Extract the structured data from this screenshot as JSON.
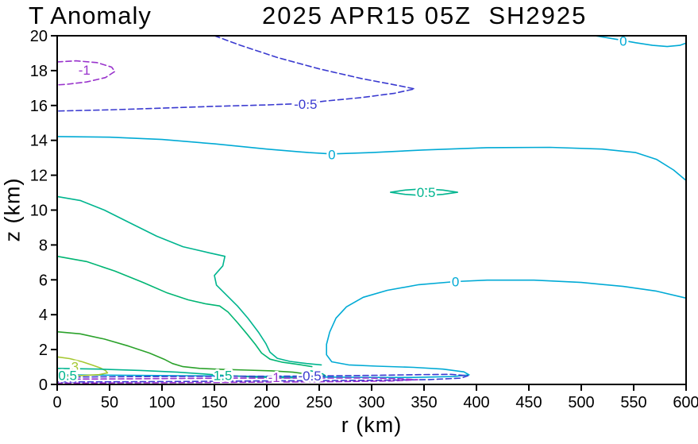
{
  "figure": {
    "title_left": "T Anomaly",
    "title_right": "2025 APR15 05Z  SH2925",
    "xlabel": "r (km)",
    "ylabel": "z (km)"
  },
  "chart_data": {
    "type": "contour",
    "title": "T Anomaly",
    "subtitle": "2025 APR15 05Z SH2925",
    "xlabel": "r (km)",
    "ylabel": "z (km)",
    "xlim": [
      0,
      600
    ],
    "ylim": [
      0,
      20
    ],
    "x_ticks": [
      0,
      50,
      100,
      150,
      200,
      250,
      300,
      350,
      400,
      450,
      500,
      550,
      600
    ],
    "y_ticks": [
      0,
      2,
      4,
      6,
      8,
      10,
      12,
      14,
      16,
      18,
      20
    ],
    "grid": false,
    "legend": "none",
    "level_colors": {
      "-1": "#9933cc",
      "-0.5": "#3a3ad0",
      "0": "#00aad5",
      "0.5": "#00b58f",
      "1": "#00b573",
      "1.5": "#00b58f",
      "2": "#2ba22b",
      "3": "#a6c832"
    },
    "contours": [
      {
        "id": "neg1-upper",
        "level": -1,
        "style": "dashed",
        "color": "#9933cc",
        "points": [
          [
            0,
            18.5
          ],
          [
            18,
            18.56
          ],
          [
            38,
            18.46
          ],
          [
            52,
            18.2
          ],
          [
            55,
            17.95
          ],
          [
            46,
            17.6
          ],
          [
            28,
            17.35
          ],
          [
            10,
            17.22
          ],
          [
            0,
            17.18
          ]
        ],
        "labels": [
          {
            "text": "-1",
            "r": 26,
            "z": 18.05
          }
        ]
      },
      {
        "id": "neg05-upper",
        "level": -0.5,
        "style": "dashed",
        "color": "#3a3ad0",
        "points": [
          [
            150,
            20
          ],
          [
            175,
            19.45
          ],
          [
            210,
            18.75
          ],
          [
            250,
            18.1
          ],
          [
            290,
            17.55
          ],
          [
            325,
            17.15
          ],
          [
            341,
            16.95
          ],
          [
            322,
            16.7
          ],
          [
            290,
            16.45
          ],
          [
            255,
            16.25
          ],
          [
            237,
            16.12
          ],
          [
            200,
            16.03
          ],
          [
            150,
            15.95
          ],
          [
            100,
            15.85
          ],
          [
            50,
            15.75
          ],
          [
            0,
            15.68
          ]
        ],
        "labels": [
          {
            "text": "-0.5",
            "r": 237,
            "z": 16.08
          }
        ]
      },
      {
        "id": "zero-top-right",
        "level": 0,
        "style": "solid",
        "color": "#00aad5",
        "points": [
          [
            513,
            20
          ],
          [
            535,
            19.78
          ],
          [
            552,
            19.6
          ],
          [
            568,
            19.45
          ],
          [
            582,
            19.38
          ],
          [
            594,
            19.45
          ],
          [
            600,
            19.58
          ]
        ],
        "labels": [
          {
            "text": "0",
            "r": 540,
            "z": 19.7
          }
        ]
      },
      {
        "id": "zero-mid",
        "level": 0,
        "style": "solid",
        "color": "#00aad5",
        "points": [
          [
            0,
            14.22
          ],
          [
            50,
            14.18
          ],
          [
            100,
            14.05
          ],
          [
            150,
            13.8
          ],
          [
            200,
            13.5
          ],
          [
            240,
            13.3
          ],
          [
            262,
            13.22
          ],
          [
            300,
            13.3
          ],
          [
            350,
            13.45
          ],
          [
            410,
            13.58
          ],
          [
            470,
            13.6
          ],
          [
            520,
            13.5
          ],
          [
            552,
            13.3
          ],
          [
            572,
            12.9
          ],
          [
            588,
            12.3
          ],
          [
            600,
            11.7
          ]
        ],
        "labels": [
          {
            "text": "0",
            "r": 262,
            "z": 13.2
          }
        ]
      },
      {
        "id": "pos05-mid",
        "level": 0.5,
        "style": "solid",
        "color": "#00b58f",
        "points": [
          [
            318,
            11.02
          ],
          [
            332,
            11.15
          ],
          [
            350,
            11.22
          ],
          [
            368,
            11.15
          ],
          [
            382,
            11.02
          ],
          [
            368,
            10.9
          ],
          [
            350,
            10.83
          ],
          [
            332,
            10.9
          ],
          [
            318,
            11.02
          ]
        ],
        "labels": [
          {
            "text": "0.5",
            "r": 352,
            "z": 11.02
          }
        ]
      },
      {
        "id": "zero-lower",
        "level": 0,
        "style": "solid",
        "color": "#00aad5",
        "points": [
          [
            600,
            4.95
          ],
          [
            572,
            5.35
          ],
          [
            540,
            5.62
          ],
          [
            500,
            5.85
          ],
          [
            455,
            5.98
          ],
          [
            410,
            5.98
          ],
          [
            380,
            5.9
          ],
          [
            345,
            5.72
          ],
          [
            315,
            5.4
          ],
          [
            292,
            5.0
          ],
          [
            276,
            4.45
          ],
          [
            266,
            3.8
          ],
          [
            260,
            3.0
          ],
          [
            257,
            2.3
          ],
          [
            257,
            1.7
          ],
          [
            262,
            1.3
          ],
          [
            278,
            1.12
          ],
          [
            305,
            1.05
          ],
          [
            340,
            0.98
          ],
          [
            368,
            0.88
          ],
          [
            388,
            0.72
          ],
          [
            393,
            0.55
          ],
          [
            378,
            0.45
          ],
          [
            340,
            0.4
          ],
          [
            300,
            0.4
          ],
          [
            260,
            0.42
          ],
          [
            230,
            0.44
          ],
          [
            180,
            0.47
          ],
          [
            120,
            0.5
          ],
          [
            60,
            0.53
          ],
          [
            0,
            0.55
          ]
        ],
        "labels": [
          {
            "text": "0",
            "r": 380,
            "z": 5.9
          }
        ]
      },
      {
        "id": "pos05-left",
        "level": 0.5,
        "style": "solid",
        "color": "#00b58f",
        "points": [
          [
            0,
            10.78
          ],
          [
            22,
            10.55
          ],
          [
            45,
            10.0
          ],
          [
            70,
            9.25
          ],
          [
            95,
            8.5
          ],
          [
            120,
            7.9
          ],
          [
            145,
            7.55
          ],
          [
            160,
            7.35
          ],
          [
            158,
            6.8
          ],
          [
            150,
            6.25
          ],
          [
            152,
            5.7
          ],
          [
            162,
            5.1
          ],
          [
            172,
            4.5
          ],
          [
            182,
            3.8
          ],
          [
            192,
            3.0
          ],
          [
            199,
            2.35
          ],
          [
            203,
            1.85
          ],
          [
            210,
            1.5
          ],
          [
            222,
            1.32
          ],
          [
            238,
            1.2
          ],
          [
            252,
            1.12
          ]
        ],
        "labels": []
      },
      {
        "id": "pos1-left",
        "level": 1,
        "style": "solid",
        "color": "#00b573",
        "points": [
          [
            0,
            7.35
          ],
          [
            28,
            7.05
          ],
          [
            55,
            6.5
          ],
          [
            82,
            5.85
          ],
          [
            105,
            5.25
          ],
          [
            125,
            4.85
          ],
          [
            142,
            4.62
          ],
          [
            155,
            4.5
          ],
          [
            163,
            4.15
          ],
          [
            172,
            3.55
          ],
          [
            181,
            2.9
          ],
          [
            189,
            2.3
          ],
          [
            195,
            1.8
          ],
          [
            203,
            1.45
          ],
          [
            215,
            1.27
          ],
          [
            230,
            1.15
          ],
          [
            243,
            1.02
          ]
        ],
        "labels": []
      },
      {
        "id": "pos2-left",
        "level": 2,
        "style": "solid",
        "color": "#2ba22b",
        "points": [
          [
            0,
            3.02
          ],
          [
            22,
            2.9
          ],
          [
            45,
            2.6
          ],
          [
            68,
            2.2
          ],
          [
            88,
            1.8
          ],
          [
            102,
            1.45
          ],
          [
            110,
            1.2
          ],
          [
            120,
            1.02
          ],
          [
            136,
            0.92
          ],
          [
            158,
            0.86
          ],
          [
            182,
            0.82
          ],
          [
            205,
            0.78
          ],
          [
            225,
            0.7
          ],
          [
            238,
            0.6
          ]
        ],
        "labels": []
      },
      {
        "id": "pos3-left",
        "level": 3,
        "style": "solid",
        "color": "#a6c832",
        "points": [
          [
            0,
            1.58
          ],
          [
            12,
            1.48
          ],
          [
            24,
            1.3
          ],
          [
            34,
            1.1
          ],
          [
            41,
            0.95
          ],
          [
            46,
            0.8
          ],
          [
            48,
            0.66
          ],
          [
            40,
            0.56
          ],
          [
            20,
            0.5
          ],
          [
            0,
            0.48
          ]
        ],
        "labels": [
          {
            "text": "3",
            "r": 17,
            "z": 1.02
          }
        ]
      },
      {
        "id": "pos15-bottom",
        "level": 1.5,
        "style": "solid",
        "color": "#00b58f",
        "points": [
          [
            0,
            0.92
          ],
          [
            40,
            0.88
          ],
          [
            80,
            0.8
          ],
          [
            115,
            0.7
          ],
          [
            140,
            0.6
          ],
          [
            158,
            0.52
          ],
          [
            190,
            0.42
          ],
          [
            220,
            0.38
          ],
          [
            245,
            0.4
          ],
          [
            256,
            0.5
          ],
          [
            252,
            0.65
          ],
          [
            242,
            0.78
          ]
        ],
        "labels": [
          {
            "text": "1.5",
            "r": 158,
            "z": 0.52
          }
        ]
      },
      {
        "id": "neg05-bottom",
        "level": -0.5,
        "style": "dashed",
        "color": "#3a3ad0",
        "points": [
          [
            0,
            0.42
          ],
          [
            60,
            0.44
          ],
          [
            120,
            0.46
          ],
          [
            180,
            0.47
          ],
          [
            241,
            0.48
          ],
          [
            300,
            0.52
          ],
          [
            345,
            0.56
          ],
          [
            375,
            0.58
          ],
          [
            392,
            0.5
          ],
          [
            385,
            0.36
          ],
          [
            355,
            0.28
          ],
          [
            310,
            0.24
          ],
          [
            255,
            0.22
          ],
          [
            190,
            0.2
          ],
          [
            120,
            0.17
          ],
          [
            60,
            0.15
          ],
          [
            0,
            0.14
          ]
        ],
        "labels": [
          {
            "text": "-0.5",
            "r": 241,
            "z": 0.5
          }
        ]
      },
      {
        "id": "neg1-bottom",
        "level": -1,
        "style": "dashed",
        "color": "#9933cc",
        "points": [
          [
            0,
            0.3
          ],
          [
            60,
            0.32
          ],
          [
            120,
            0.34
          ],
          [
            170,
            0.36
          ],
          [
            207,
            0.36
          ],
          [
            250,
            0.37
          ],
          [
            295,
            0.37
          ],
          [
            326,
            0.33
          ],
          [
            344,
            0.27
          ],
          [
            320,
            0.2
          ],
          [
            270,
            0.16
          ],
          [
            200,
            0.13
          ],
          [
            120,
            0.1
          ],
          [
            40,
            0.08
          ],
          [
            0,
            0.07
          ]
        ],
        "labels": [
          {
            "text": "-1",
            "r": 207,
            "z": 0.4
          }
        ]
      }
    ],
    "extra_labels": [
      {
        "text": "0.5",
        "color": "#00b58f",
        "r": 10,
        "z": 0.52
      }
    ]
  }
}
